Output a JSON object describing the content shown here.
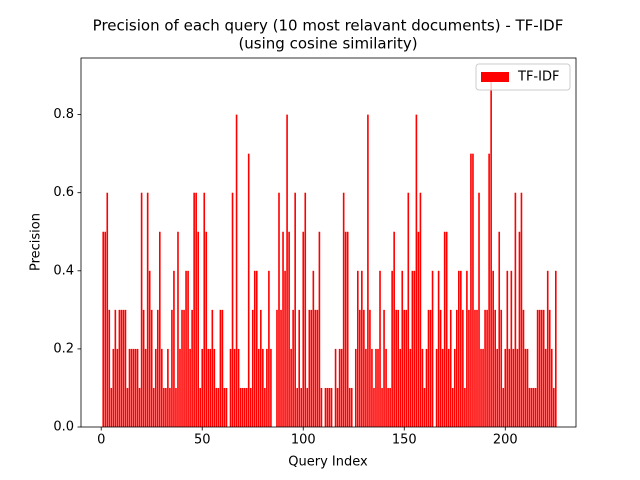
{
  "chart_data": {
    "type": "bar",
    "title": "Precision of each query (10 most relavant documents) - TF-IDF",
    "subtitle": "(using cosine similarity)",
    "x_label": "Query Index",
    "y_label": "Precision",
    "x": [
      1,
      2,
      3,
      4,
      5,
      6,
      7,
      8,
      9,
      10,
      11,
      12,
      13,
      14,
      15,
      16,
      17,
      18,
      19,
      20,
      21,
      22,
      23,
      24,
      25,
      26,
      27,
      28,
      29,
      30,
      31,
      32,
      33,
      34,
      35,
      36,
      37,
      38,
      39,
      40,
      41,
      42,
      43,
      44,
      45,
      46,
      47,
      48,
      49,
      50,
      51,
      52,
      53,
      54,
      55,
      56,
      57,
      58,
      59,
      60,
      61,
      62,
      63,
      64,
      65,
      66,
      67,
      68,
      69,
      70,
      71,
      72,
      73,
      74,
      75,
      76,
      77,
      78,
      79,
      80,
      81,
      82,
      83,
      84,
      85,
      86,
      87,
      88,
      89,
      90,
      91,
      92,
      93,
      94,
      95,
      96,
      97,
      98,
      99,
      100,
      101,
      102,
      103,
      104,
      105,
      106,
      107,
      108,
      109,
      110,
      111,
      112,
      113,
      114,
      115,
      116,
      117,
      118,
      119,
      120,
      121,
      122,
      123,
      124,
      125,
      126,
      127,
      128,
      129,
      130,
      131,
      132,
      133,
      134,
      135,
      136,
      137,
      138,
      139,
      140,
      141,
      142,
      143,
      144,
      145,
      146,
      147,
      148,
      149,
      150,
      151,
      152,
      153,
      154,
      155,
      156,
      157,
      158,
      159,
      160,
      161,
      162,
      163,
      164,
      165,
      166,
      167,
      168,
      169,
      170,
      171,
      172,
      173,
      174,
      175,
      176,
      177,
      178,
      179,
      180,
      181,
      182,
      183,
      184,
      185,
      186,
      187,
      188,
      189,
      190,
      191,
      192,
      193,
      194,
      195,
      196,
      197,
      198,
      199,
      200,
      201,
      202,
      203,
      204,
      205,
      206,
      207,
      208,
      209,
      210,
      211,
      212,
      213,
      214,
      215,
      216,
      217,
      218,
      219,
      220,
      221,
      222,
      223,
      224,
      225
    ],
    "series": [
      {
        "name": "TF-IDF",
        "color": "#ff0000",
        "values": [
          0.5,
          0.5,
          0.6,
          0.3,
          0.1,
          0.2,
          0.3,
          0.2,
          0.3,
          0.3,
          0.3,
          0.3,
          0.1,
          0.2,
          0.2,
          0.2,
          0.2,
          0.2,
          0.1,
          0.6,
          0.3,
          0.2,
          0.6,
          0.4,
          0.3,
          0.1,
          0.2,
          0.3,
          0.5,
          0.2,
          0.1,
          0.1,
          0.2,
          0.1,
          0.3,
          0.4,
          0.1,
          0.5,
          0.2,
          0.3,
          0.3,
          0.4,
          0.4,
          0.2,
          0.3,
          0.6,
          0.6,
          0.5,
          0.1,
          0.2,
          0.6,
          0.5,
          0.2,
          0.2,
          0.3,
          0.2,
          0.1,
          0.1,
          0.3,
          0.3,
          0.1,
          0.1,
          0.0,
          0.2,
          0.6,
          0.2,
          0.8,
          0.2,
          0.1,
          0.1,
          0.1,
          0.1,
          0.7,
          0.1,
          0.3,
          0.4,
          0.4,
          0.2,
          0.3,
          0.2,
          0.1,
          0.2,
          0.4,
          0.2,
          0.0,
          0.0,
          0.3,
          0.6,
          0.3,
          0.5,
          0.4,
          0.8,
          0.5,
          0.2,
          0.3,
          0.6,
          0.1,
          0.3,
          0.1,
          0.5,
          0.6,
          0.1,
          0.3,
          0.3,
          0.4,
          0.3,
          0.3,
          0.5,
          0.1,
          0.0,
          0.1,
          0.1,
          0.1,
          0.1,
          0.0,
          0.2,
          0.1,
          0.2,
          0.2,
          0.6,
          0.5,
          0.5,
          0.1,
          0.1,
          0.0,
          0.2,
          0.4,
          0.3,
          0.4,
          0.3,
          0.2,
          0.8,
          0.3,
          0.2,
          0.1,
          0.2,
          0.2,
          0.4,
          0.1,
          0.3,
          0.2,
          0.1,
          0.1,
          0.4,
          0.5,
          0.3,
          0.3,
          0.2,
          0.4,
          0.3,
          0.3,
          0.6,
          0.2,
          0.4,
          0.4,
          0.8,
          0.5,
          0.6,
          0.2,
          0.1,
          0.2,
          0.3,
          0.3,
          0.4,
          0.0,
          0.2,
          0.4,
          0.3,
          0.2,
          0.5,
          0.5,
          0.2,
          0.3,
          0.1,
          0.2,
          0.3,
          0.4,
          0.4,
          0.3,
          0.1,
          0.4,
          0.3,
          0.7,
          0.7,
          0.3,
          0.3,
          0.6,
          0.2,
          0.2,
          0.3,
          0.3,
          0.7,
          0.9,
          0.4,
          0.3,
          0.2,
          0.5,
          0.3,
          0.1,
          0.2,
          0.4,
          0.2,
          0.4,
          0.2,
          0.6,
          0.2,
          0.5,
          0.6,
          0.3,
          0.2,
          0.2,
          0.1,
          0.1,
          0.1,
          0.1,
          0.3,
          0.3,
          0.3,
          0.3,
          0.2,
          0.4,
          0.3,
          0.2,
          0.1,
          0.4
        ]
      }
    ],
    "bar_width": 0.8,
    "xlim": [
      -10,
      235
    ],
    "xticks": [
      0,
      50,
      100,
      150,
      200
    ],
    "ylim": [
      0,
      0.945
    ],
    "yticks": [
      {
        "value": 0,
        "label": "0.0"
      },
      0.2,
      0.4,
      0.6,
      0.8
    ],
    "legend": "upper right"
  }
}
